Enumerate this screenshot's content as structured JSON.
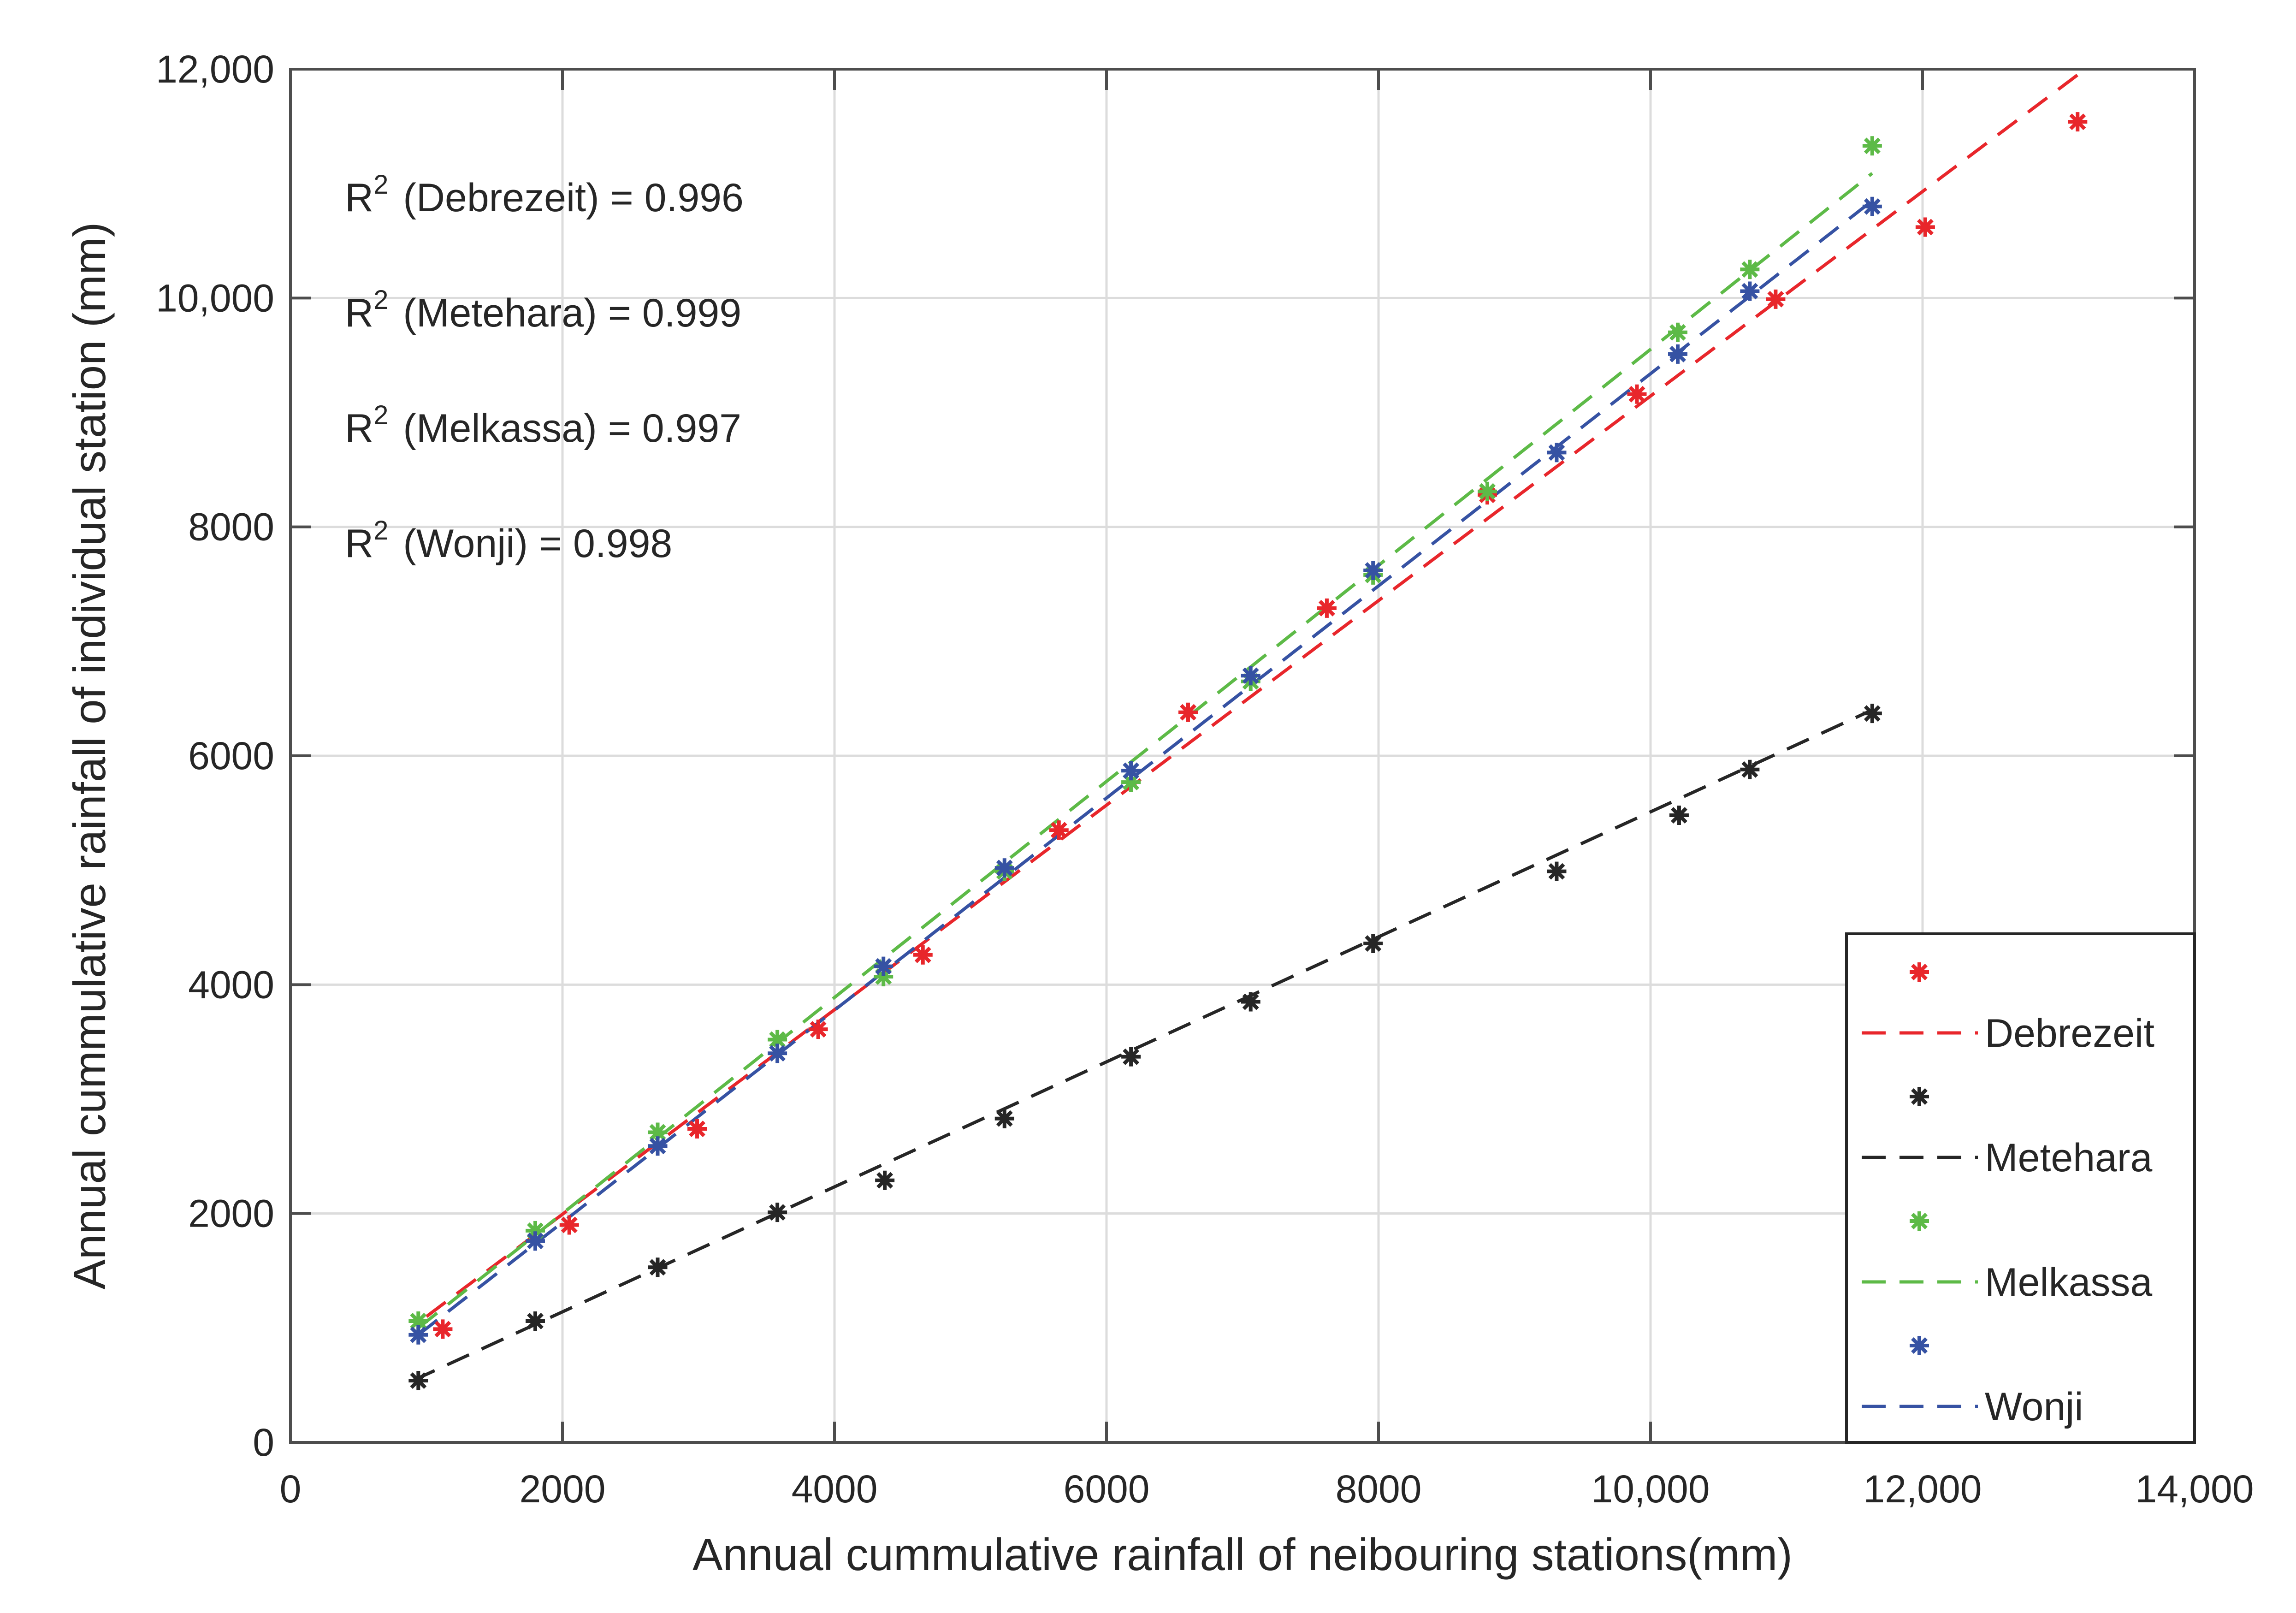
{
  "chart_data": {
    "type": "scatter",
    "title": "",
    "xlabel": "Annual cummulative rainfall of neibouring stations(mm)",
    "ylabel": "Annual cummulative rainfall of individual station (mm)",
    "xlim": [
      0,
      14000
    ],
    "ylim": [
      0,
      12000
    ],
    "grid": true,
    "legend_position": "bottom-right",
    "x_ticks": [
      {
        "value": 0,
        "label": "0"
      },
      {
        "value": 2000,
        "label": "2000"
      },
      {
        "value": 4000,
        "label": "4000"
      },
      {
        "value": 6000,
        "label": "6000"
      },
      {
        "value": 8000,
        "label": "8000"
      },
      {
        "value": 10000,
        "label": "10,000"
      },
      {
        "value": 12000,
        "label": "12,000"
      },
      {
        "value": 14000,
        "label": "14,000"
      }
    ],
    "y_ticks": [
      {
        "value": 0,
        "label": "0"
      },
      {
        "value": 2000,
        "label": "2000"
      },
      {
        "value": 4000,
        "label": "4000"
      },
      {
        "value": 6000,
        "label": "6000"
      },
      {
        "value": 8000,
        "label": "8000"
      },
      {
        "value": 10000,
        "label": "10,000"
      },
      {
        "value": 12000,
        "label": "12,000"
      }
    ],
    "annotations": [
      {
        "prefix": "R",
        "sup": "2",
        "text": " (Debrezeit) = 0.996"
      },
      {
        "prefix": "R",
        "sup": "2",
        "text": " (Metehara) = 0.999"
      },
      {
        "prefix": "R",
        "sup": "2",
        "text": " (Melkassa) = 0.997"
      },
      {
        "prefix": "R",
        "sup": "2",
        "text": " (Wonji) = 0.998"
      }
    ],
    "series": [
      {
        "name": "Debrezeit",
        "color": "#e8262b",
        "x": [
          1120,
          2050,
          2990,
          3880,
          4650,
          5650,
          6600,
          7620,
          8800,
          9900,
          10920,
          12020,
          13140
        ],
        "y": [
          990,
          1900,
          2740,
          3610,
          4260,
          5350,
          6380,
          7290,
          8280,
          9160,
          9990,
          10620,
          11540
        ],
        "fit": {
          "x": [
            1000,
            13140
          ],
          "y": [
            1100,
            11950
          ]
        }
      },
      {
        "name": "Metehara",
        "color": "#262626",
        "x": [
          940,
          1800,
          2700,
          3580,
          4370,
          5250,
          6180,
          7060,
          7960,
          9310,
          10210,
          10730,
          11630
        ],
        "y": [
          540,
          1060,
          1530,
          2010,
          2290,
          2830,
          3370,
          3850,
          4360,
          4990,
          5480,
          5880,
          6370
        ],
        "fit": {
          "x": [
            900,
            11630
          ],
          "y": [
            540,
            6400
          ]
        }
      },
      {
        "name": "Melkassa",
        "color": "#5dba47",
        "x": [
          940,
          1800,
          2700,
          3580,
          4360,
          5250,
          6180,
          7060,
          7960,
          8800,
          10200,
          10730,
          11630
        ],
        "y": [
          1060,
          1850,
          2710,
          3520,
          4070,
          4990,
          5770,
          6650,
          7580,
          8310,
          9700,
          10250,
          11330
        ],
        "fit": {
          "x": [
            940,
            11630
          ],
          "y": [
            1000,
            11090
          ]
        }
      },
      {
        "name": "Wonji",
        "color": "#3652a3",
        "x": [
          940,
          1800,
          2700,
          3580,
          4360,
          5250,
          6180,
          7060,
          7960,
          9310,
          10200,
          10730,
          11630
        ],
        "y": [
          940,
          1760,
          2590,
          3400,
          4160,
          5020,
          5870,
          6700,
          7620,
          8650,
          9510,
          10060,
          10800
        ],
        "fit": {
          "x": [
            940,
            11630
          ],
          "y": [
            940,
            10850
          ]
        }
      }
    ]
  }
}
